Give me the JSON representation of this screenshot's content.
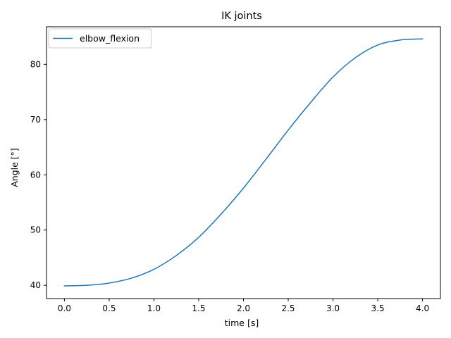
{
  "chart_data": {
    "type": "line",
    "title": "IK joints",
    "xlabel": "time [s]",
    "ylabel": "Angle [°]",
    "xlim": [
      -0.2,
      4.2
    ],
    "ylim": [
      37.6,
      86.8
    ],
    "x_ticks": [
      0.0,
      0.5,
      1.0,
      1.5,
      2.0,
      2.5,
      3.0,
      3.5,
      4.0
    ],
    "x_tick_labels": [
      "0.0",
      "0.5",
      "1.0",
      "1.5",
      "2.0",
      "2.5",
      "3.0",
      "3.5",
      "4.0"
    ],
    "y_ticks": [
      40,
      50,
      60,
      70,
      80
    ],
    "y_tick_labels": [
      "40",
      "50",
      "60",
      "70",
      "80"
    ],
    "grid": false,
    "legend_position": "upper-left",
    "series": [
      {
        "name": "elbow_flexion",
        "color": "#1f77b4",
        "x": [
          0.0,
          0.25,
          0.5,
          0.75,
          1.0,
          1.25,
          1.5,
          1.75,
          2.0,
          2.25,
          2.5,
          2.75,
          3.0,
          3.25,
          3.5,
          3.75,
          4.0
        ],
        "y": [
          39.9,
          40.0,
          40.4,
          41.3,
          42.9,
          45.4,
          48.7,
          52.9,
          57.6,
          62.8,
          68.1,
          73.1,
          77.7,
          81.2,
          83.5,
          84.4,
          84.6
        ]
      }
    ]
  }
}
